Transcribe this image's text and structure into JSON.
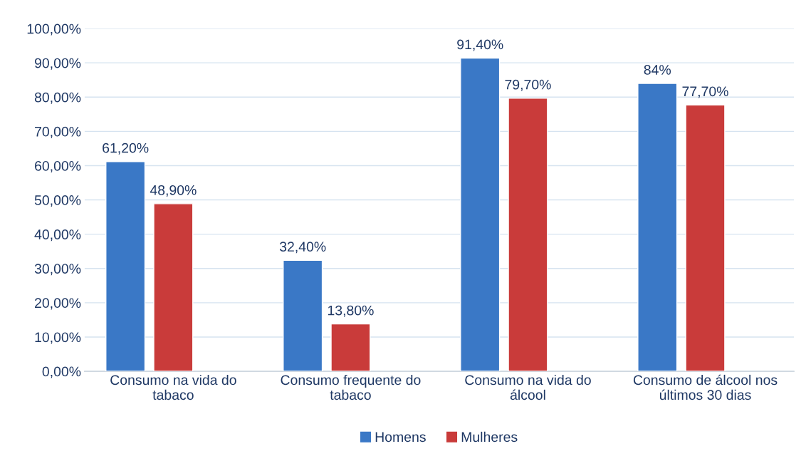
{
  "chart_data": {
    "type": "bar",
    "categories": [
      "Consumo na vida do\ntabaco",
      "Consumo frequente do\ntabaco",
      "Consumo na vida do\nálcool",
      "Consumo de álcool nos\núltimos 30 dias"
    ],
    "series": [
      {
        "name": "Homens",
        "color": "#3a78c6",
        "values": [
          61.2,
          32.4,
          91.4,
          84
        ],
        "value_labels": [
          "61,20%",
          "32,40%",
          "91,40%",
          "84%"
        ]
      },
      {
        "name": "Mulheres",
        "color": "#c93b3a",
        "values": [
          48.9,
          13.8,
          79.7,
          77.7
        ],
        "value_labels": [
          "48,90%",
          "13,80%",
          "79,70%",
          "77,70%"
        ]
      }
    ],
    "ylim": [
      0,
      100
    ],
    "yticks": [
      {
        "value": 0,
        "label": "0,00%"
      },
      {
        "value": 10,
        "label": "10,00%"
      },
      {
        "value": 20,
        "label": "20,00%"
      },
      {
        "value": 30,
        "label": "30,00%"
      },
      {
        "value": 40,
        "label": "40,00%"
      },
      {
        "value": 50,
        "label": "50,00%"
      },
      {
        "value": 60,
        "label": "60,00%"
      },
      {
        "value": 70,
        "label": "70,00%"
      },
      {
        "value": 80,
        "label": "80,00%"
      },
      {
        "value": 90,
        "label": "90,00%"
      },
      {
        "value": 100,
        "label": "100,00%"
      }
    ],
    "grid": "y",
    "legend": "bottom"
  }
}
